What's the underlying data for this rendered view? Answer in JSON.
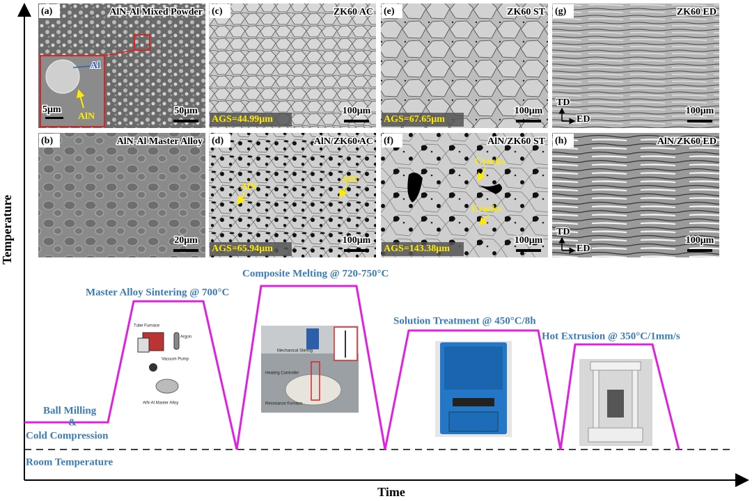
{
  "axes": {
    "y_label": "Temperature",
    "x_label": "Time"
  },
  "panels": [
    {
      "letter": "(a)",
      "title": "AlN-Al Mixed Powder",
      "scale_bar": "50μm",
      "labels": [
        "Al",
        "AlN",
        "5μm"
      ]
    },
    {
      "letter": "(b)",
      "title": "AlN-Al Master Alloy",
      "scale_bar": "20μm",
      "labels": []
    },
    {
      "letter": "(c)",
      "title": "ZK60 AC",
      "scale_bar": "100μm",
      "ags": "AGS=44.99μm",
      "labels": []
    },
    {
      "letter": "(d)",
      "title": "AlN/ZK60 AC",
      "scale_bar": "100μm",
      "ags": "AGS=65.94μm",
      "labels": [
        "AlN",
        "AlN"
      ]
    },
    {
      "letter": "(e)",
      "title": "ZK60 ST",
      "scale_bar": "100μm",
      "ags": "AGS=67.65μm",
      "labels": []
    },
    {
      "letter": "(f)",
      "title": "AlN/ZK60 ST",
      "scale_bar": "100μm",
      "ags": "AGS=143.38μm",
      "labels": [
        "Cracks",
        "Cracks"
      ]
    },
    {
      "letter": "(g)",
      "title": "ZK60 ED",
      "scale_bar": "100μm",
      "labels": [
        "TD",
        "ED"
      ]
    },
    {
      "letter": "(h)",
      "title": "AlN/ZK60 ED",
      "scale_bar": "100μm",
      "labels": [
        "TD",
        "ED"
      ]
    }
  ],
  "process": {
    "ball_milling": [
      "Ball Milling",
      "&",
      "Cold Compression"
    ],
    "sintering": "Master Alloy Sintering @ 700°C",
    "melting": "Composite Melting @ 720-750°C",
    "solution": "Solution Treatment @ 450°C/8h",
    "extrusion": "Hot Extrusion @ 350°C/1mm/s",
    "room": "Room Temperature"
  },
  "equipment": {
    "sintering": [
      "Tube Furnace",
      "Argon",
      "Vacuum Pump",
      "AlN-Al Master Alloy"
    ],
    "melting": [
      "Mechanical Stirring",
      "Heating Controller",
      "Resistance Furnace"
    ]
  }
}
